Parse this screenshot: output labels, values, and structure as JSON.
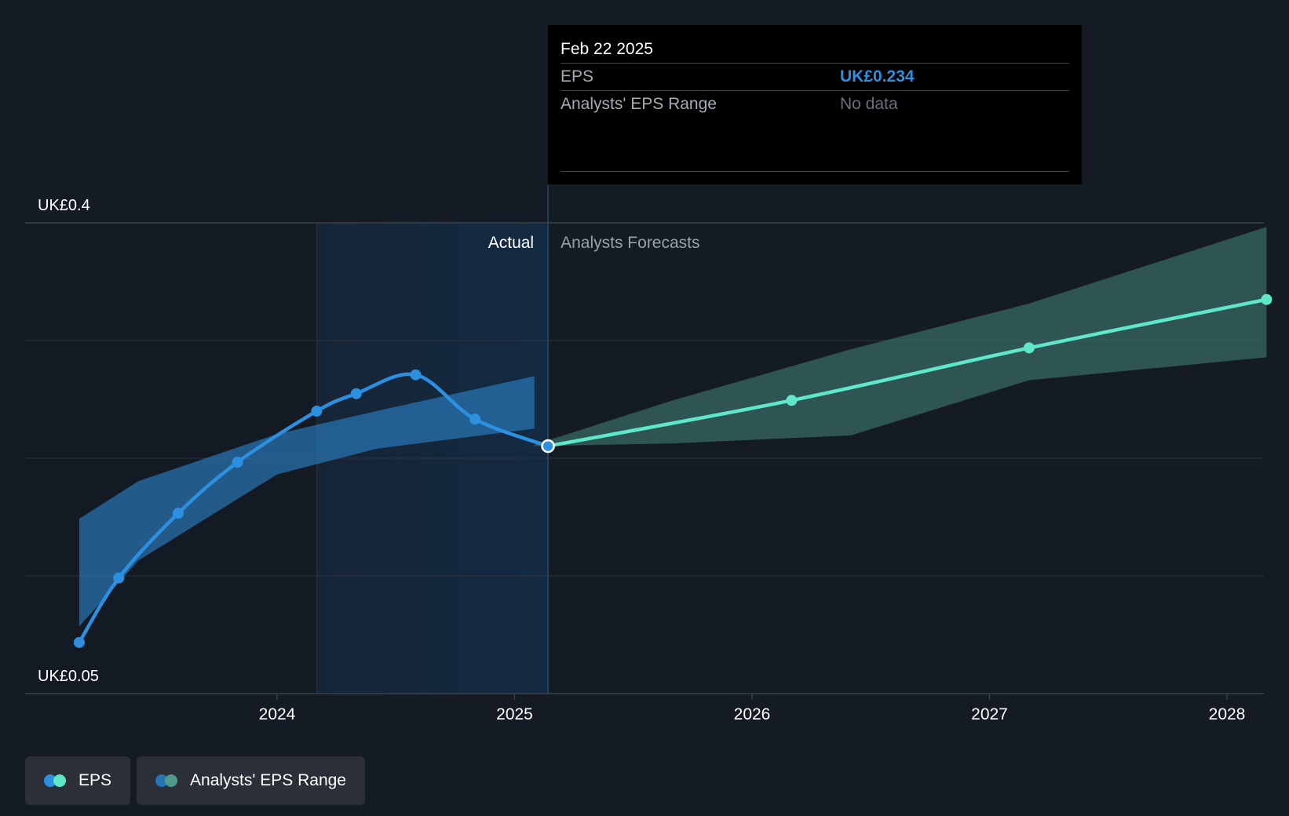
{
  "chart_data": {
    "type": "line",
    "y_axis": {
      "min_label": "UK£0.05",
      "max_label": "UK£0.4",
      "ylim": [
        0.05,
        0.4
      ]
    },
    "x_ticks": [
      "2024",
      "2025",
      "2026",
      "2027",
      "2028"
    ],
    "regions": {
      "actual_label": "Actual",
      "forecast_label": "Analysts Forecasts"
    },
    "series": [
      {
        "name": "EPS",
        "color": "#2d8fe0",
        "points": [
          {
            "x": "2023-03",
            "y": 0.088
          },
          {
            "x": "2023-05",
            "y": 0.136
          },
          {
            "x": "2023-08",
            "y": 0.184
          },
          {
            "x": "2023-11",
            "y": 0.222
          },
          {
            "x": "2024-03",
            "y": 0.26
          },
          {
            "x": "2024-05",
            "y": 0.273
          },
          {
            "x": "2024-08",
            "y": 0.287
          },
          {
            "x": "2024-11",
            "y": 0.254
          },
          {
            "x": "2025-02-22",
            "y": 0.234
          }
        ]
      },
      {
        "name": "EPS Forecast",
        "color": "#5ee8c8",
        "points": [
          {
            "x": "2025-02-22",
            "y": 0.234
          },
          {
            "x": "2026-03",
            "y": 0.268
          },
          {
            "x": "2027-03",
            "y": 0.307
          },
          {
            "x": "2028-03",
            "y": 0.343
          }
        ]
      }
    ],
    "range_past": {
      "name": "Analysts' EPS Range",
      "color": "#2874b3",
      "x": [
        "2023-03",
        "2023-06",
        "2024-01",
        "2024-06",
        "2025-02"
      ],
      "high": [
        0.18,
        0.208,
        0.243,
        0.26,
        0.286
      ],
      "low": [
        0.1,
        0.149,
        0.213,
        0.232,
        0.247
      ]
    },
    "range_forecast": {
      "name": "Analysts' EPS Range",
      "color": "#3a6b66",
      "x": [
        "2025-02",
        "2025-09",
        "2026-06",
        "2027-03",
        "2028-03"
      ],
      "high": [
        0.235,
        0.268,
        0.306,
        0.34,
        0.397
      ],
      "low": [
        0.234,
        0.236,
        0.242,
        0.283,
        0.3
      ]
    },
    "grid": true
  },
  "tooltip": {
    "date": "Feb 22 2025",
    "rows": [
      {
        "label": "EPS",
        "value": "UK£0.234",
        "value_color": "#2d8fe0"
      },
      {
        "label": "Analysts' EPS Range",
        "value": "No data",
        "value_color": "#6b7079"
      }
    ]
  },
  "legend": [
    {
      "label": "EPS",
      "colors": [
        "#2d8fe0",
        "#5ee8c8"
      ]
    },
    {
      "label": "Analysts' EPS Range",
      "colors": [
        "#2874b3",
        "#4f9a8a"
      ]
    }
  ]
}
